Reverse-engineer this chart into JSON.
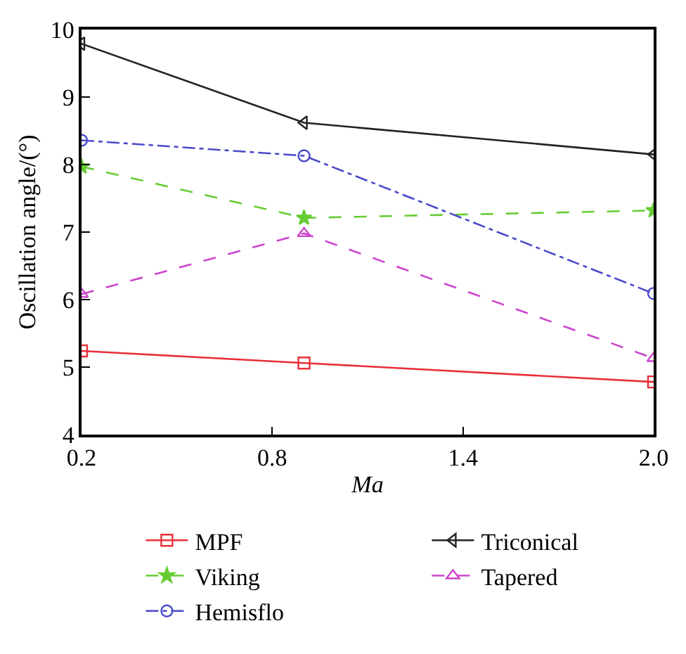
{
  "chart_data": {
    "type": "line",
    "xlabel": "Ma",
    "ylabel": "Oscillation angle/(°)",
    "x": [
      0.2,
      0.9,
      2.0
    ],
    "xlim": [
      0.2,
      2.0
    ],
    "xticks": [
      {
        "value": 0.2,
        "label": "0.2"
      },
      {
        "value": 0.8,
        "label": "0.8"
      },
      {
        "value": 1.4,
        "label": "1.4"
      },
      {
        "value": 2.0,
        "label": "2.0"
      }
    ],
    "ylim": [
      4,
      10
    ],
    "yticks": [
      4,
      5,
      6,
      7,
      8,
      9,
      10
    ],
    "legend": "bottom",
    "series": [
      {
        "name": "MPF",
        "color": "#e8303a",
        "values": [
          5.24,
          5.06,
          4.78
        ],
        "marker": "square",
        "line_style": "solid"
      },
      {
        "name": "Viking",
        "color": "#66cc33",
        "values": [
          7.97,
          7.21,
          7.32
        ],
        "marker": "star",
        "line_style": "dashed"
      },
      {
        "name": "Hemisflo",
        "color": "#4a4acc",
        "values": [
          8.36,
          8.13,
          6.09
        ],
        "marker": "circle",
        "line_style": "dashdot"
      },
      {
        "name": "Triconical",
        "color": "#222222",
        "values": [
          9.79,
          8.62,
          8.15
        ],
        "marker": "triangle-left",
        "line_style": "solid"
      },
      {
        "name": "Tapered",
        "color": "#cc44cc",
        "values": [
          6.08,
          6.98,
          5.13
        ],
        "marker": "triangle",
        "line_style": "dashed"
      }
    ]
  }
}
